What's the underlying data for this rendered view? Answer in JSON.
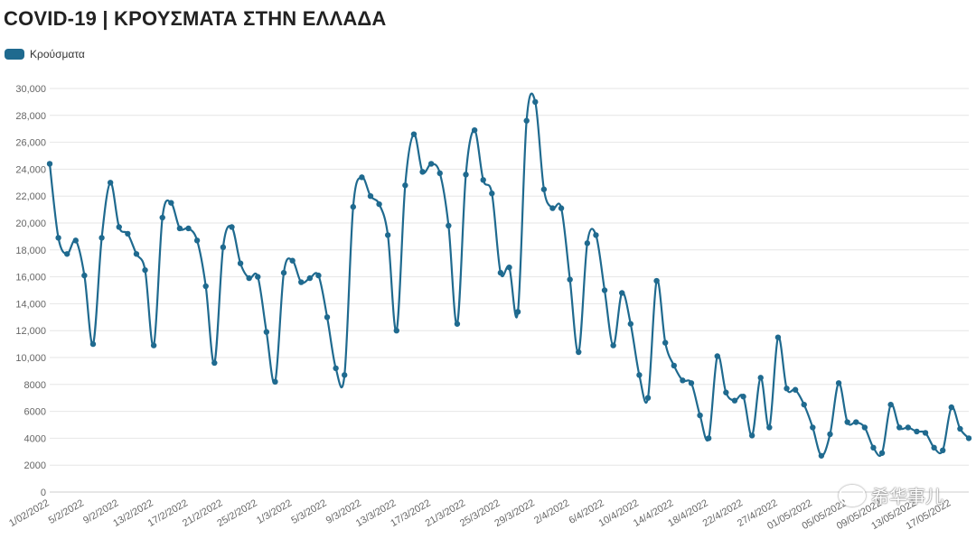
{
  "title": "COVID-19 | ΚΡΟΥΣΜΑΤΑ ΣΤΗΝ ΕΛΛΑΔΑ",
  "colors": {
    "series": "#1f6a8f",
    "grid": "#e6e6e6",
    "axis_text": "#666666"
  },
  "watermark": "希华事儿",
  "chart_data": {
    "type": "line",
    "title": "COVID-19 | ΚΡΟΥΣΜΑΤΑ ΣΤΗΝ ΕΛΛΑΔΑ",
    "legend_position": "top-left",
    "grid": true,
    "ylim": [
      0,
      30000
    ],
    "y_ticks": [
      0,
      2000,
      4000,
      6000,
      8000,
      10000,
      12000,
      14000,
      16000,
      18000,
      20000,
      22000,
      24000,
      26000,
      28000,
      30000
    ],
    "y_tick_labels": [
      "0",
      "2000",
      "4000",
      "6000",
      "8000",
      "10,000",
      "12,000",
      "14,000",
      "16,000",
      "18,000",
      "20,000",
      "22,000",
      "24,000",
      "26,000",
      "28,000",
      "30,000"
    ],
    "x_tick_labels": [
      "1/02/2022",
      "5/2/2022",
      "9/2/2022",
      "13/2/2022",
      "17/2/2022",
      "21/2/2022",
      "25/2/2022",
      "1/3/2022",
      "5/3/2022",
      "9/3/2022",
      "13/3/2022",
      "17/3/2022",
      "21/3/2022",
      "25/3/2022",
      "29/3/2022",
      "2/4/2022",
      "6/4/2022",
      "10/4/2022",
      "14/4/2022",
      "18/4/2022",
      "22/4/2022",
      "27/4/2022",
      "01/05/2022",
      "05/05/2022",
      "09/05/2022",
      "13/05/2022",
      "17/05/2022"
    ],
    "series": [
      {
        "name": "Κρούσματα",
        "values": [
          24400,
          18900,
          17700,
          18700,
          16100,
          11000,
          18900,
          23000,
          19700,
          19200,
          17700,
          16500,
          10900,
          20400,
          21500,
          19600,
          19600,
          18700,
          15300,
          9600,
          18200,
          19700,
          17000,
          15900,
          16000,
          11900,
          8200,
          16300,
          17200,
          15600,
          15900,
          16100,
          13000,
          9200,
          8700,
          21200,
          23400,
          22000,
          21400,
          19100,
          12000,
          22800,
          26600,
          23800,
          24400,
          23700,
          19800,
          12500,
          23600,
          26900,
          23200,
          22200,
          16300,
          16700,
          13400,
          27600,
          29000,
          22500,
          21100,
          21100,
          15800,
          10400,
          18500,
          19100,
          15000,
          10900,
          14800,
          12500,
          8700,
          7000,
          15700,
          11100,
          9400,
          8300,
          8100,
          5700,
          4000,
          10100,
          7400,
          6800,
          7100,
          4200,
          8500,
          4800,
          11500,
          7700,
          7600,
          6500,
          4800,
          2700,
          4300,
          8100,
          5200,
          5200,
          4800,
          3300,
          2900,
          6500,
          4800,
          4800,
          4500,
          4400,
          3300,
          3100,
          6300,
          4700,
          4000
        ]
      }
    ]
  }
}
